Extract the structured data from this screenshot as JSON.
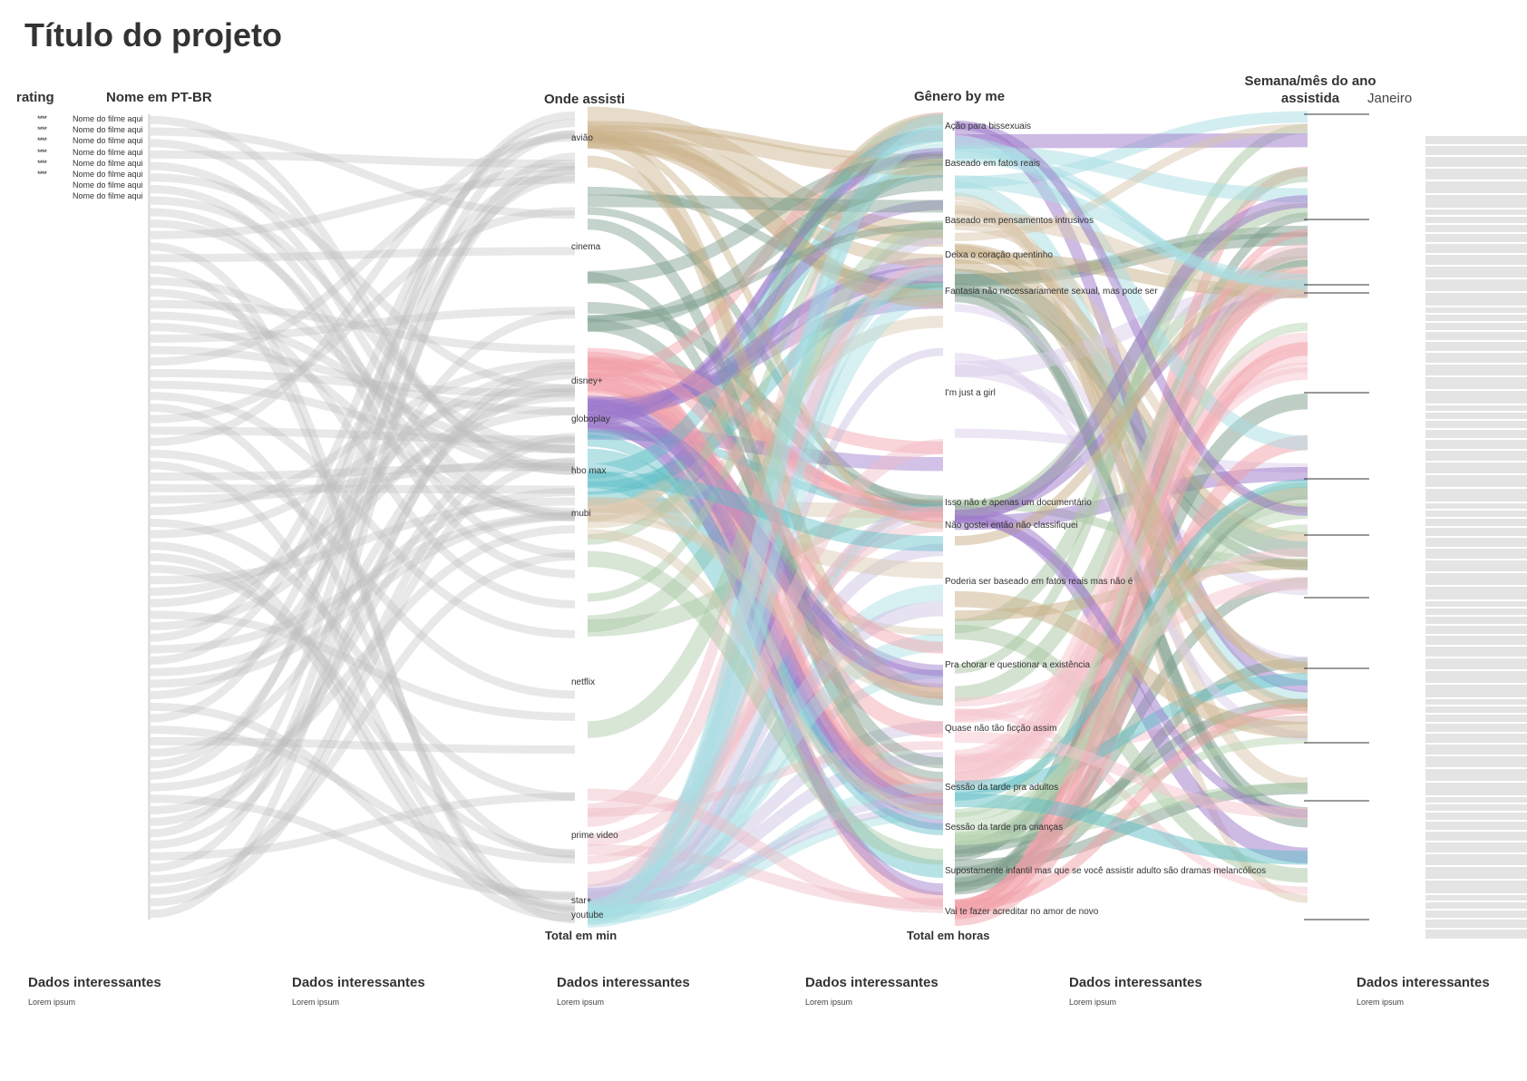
{
  "title": "Título do projeto",
  "headers": {
    "rating": "rating",
    "name": "Nome em PT-BR",
    "where": "Onde assisti",
    "genre": "Gênero by me",
    "week_line1": "Semana/mês do ano",
    "week_line2": "assistida",
    "month": "Janeiro"
  },
  "movies": {
    "rows": [
      {
        "name": "Nome do filme aqui",
        "stars": "****"
      },
      {
        "name": "Nome do filme aqui",
        "stars": "****"
      },
      {
        "name": "Nome do filme aqui",
        "stars": "****"
      },
      {
        "name": "Nome do filme aqui",
        "stars": "****"
      },
      {
        "name": "Nome do filme aqui",
        "stars": "****"
      },
      {
        "name": "Nome do filme aqui",
        "stars": "****"
      },
      {
        "name": "Nome do filme aqui",
        "stars": ""
      },
      {
        "name": "Nome do filme aqui",
        "stars": ""
      }
    ]
  },
  "platforms": [
    {
      "label": "avião",
      "color": "#c9b28a"
    },
    {
      "label": "cinema",
      "color": "#7d9e8b"
    },
    {
      "label": "disney+",
      "color": "#f2a0a8"
    },
    {
      "label": "globoplay",
      "color": "#9b78c9"
    },
    {
      "label": "hbo max",
      "color": "#5fbfc8"
    },
    {
      "label": "mubi",
      "color": "#d9c7ae"
    },
    {
      "label": "netflix",
      "color": "#a9c8a3"
    },
    {
      "label": "prime video",
      "color": "#efbcc6"
    },
    {
      "label": "star+",
      "color": "#c8bfe0"
    },
    {
      "label": "youtube",
      "color": "#a7dee3"
    }
  ],
  "genres": [
    {
      "label": "Ação para bissexuais",
      "color": "#9b78c9"
    },
    {
      "label": "Baseado em fatos reais",
      "color": "#a7dee3"
    },
    {
      "label": "Baseado em pensamentos intrusivos",
      "color": "#d9c7ae"
    },
    {
      "label": "Deixa o coração quentinho",
      "color": "#c9b28a"
    },
    {
      "label": "Fantasia não necessariamente sexual, mas pode ser",
      "color": "#7d9e8b"
    },
    {
      "label": "I'm just a girl",
      "color": "#d9cdec"
    },
    {
      "label": "Isso não é apenas um documentário",
      "color": "#a9c8a3"
    },
    {
      "label": "Não gostei então não classifiquei",
      "color": "#9b78c9"
    },
    {
      "label": "Poderia ser baseado em fatos reais mas não é",
      "color": "#c9b28a"
    },
    {
      "label": "Pra chorar e questionar a existência",
      "color": "#a9c8a3"
    },
    {
      "label": "Quase não tão ficção assim",
      "color": "#f5c6cd"
    },
    {
      "label": "Sessão da tarde pra adultos",
      "color": "#5fbfc8"
    },
    {
      "label": "Sessão da tarde pra crianças",
      "color": "#b9d6b3"
    },
    {
      "label": "Supostamente infantil mas que se você assistir adulto são dramas melancólicos",
      "color": "#7d9e8b"
    },
    {
      "label": "Vai te fazer acreditar no amor de novo",
      "color": "#f2a0a8"
    }
  ],
  "totals": {
    "minutes": "Total em min",
    "hours": "Total em horas"
  },
  "info_blocks": [
    {
      "title": "Dados interessantes",
      "body": "Lorem ipsum"
    },
    {
      "title": "Dados interessantes",
      "body": "Lorem ipsum"
    },
    {
      "title": "Dados interessantes",
      "body": "Lorem ipsum"
    },
    {
      "title": "Dados interessantes",
      "body": "Lorem ipsum"
    },
    {
      "title": "Dados interessantes",
      "body": "Lorem ipsum"
    },
    {
      "title": "Dados interessantes",
      "body": "Lorem ipsum"
    }
  ]
}
